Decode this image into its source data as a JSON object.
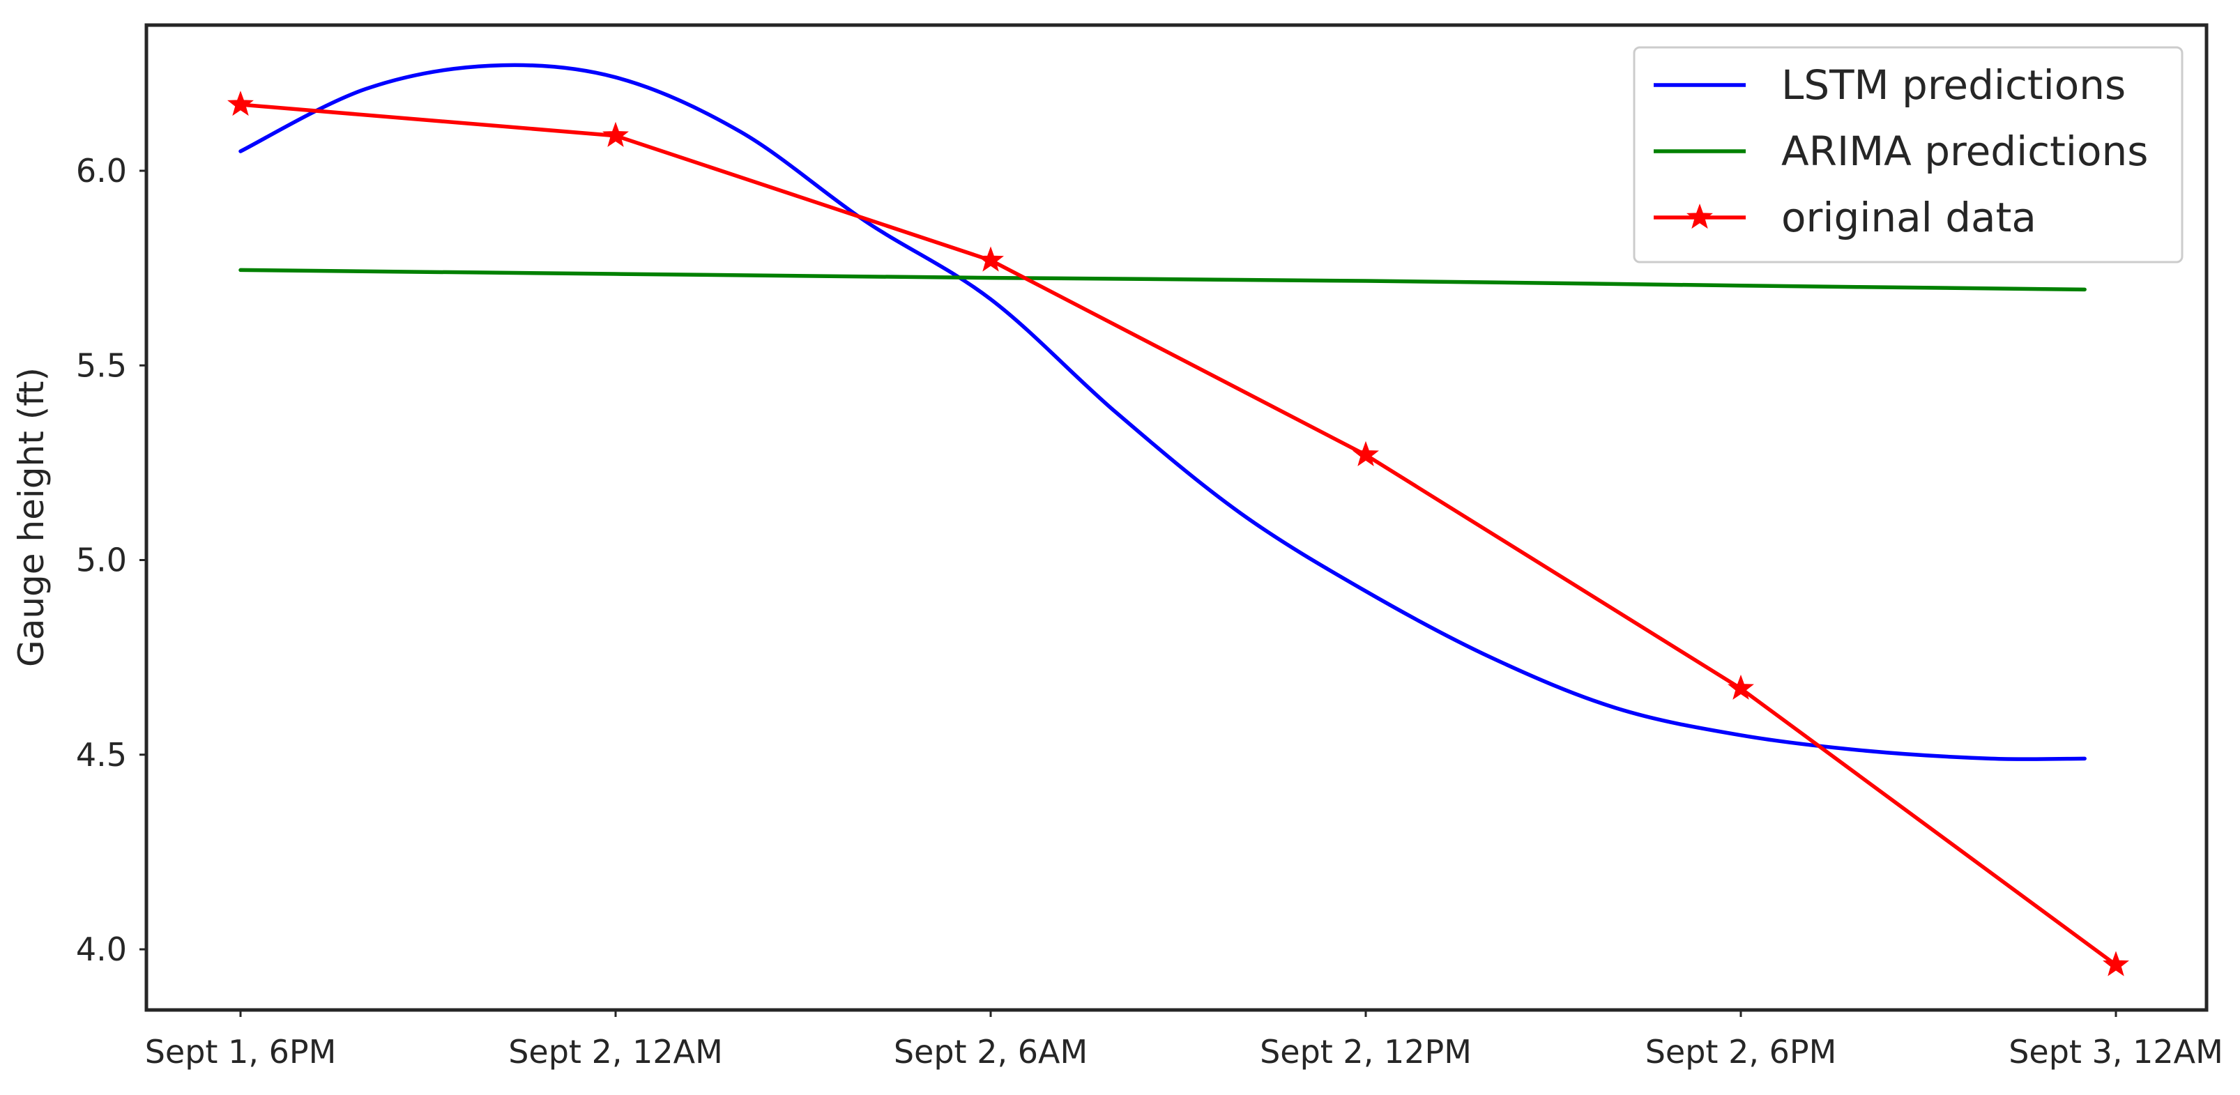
{
  "chart_data": {
    "type": "line",
    "title": "",
    "xlabel": "",
    "ylabel": "Gauge height (ft)",
    "grid": false,
    "legend_position": "top-right",
    "x_tick_labels": [
      "Sept 1, 6PM",
      "Sept 2, 12AM",
      "Sept 2, 6AM",
      "Sept 2, 12PM",
      "Sept 2, 6PM",
      "Sept 3, 12AM"
    ],
    "y_ticks": [
      4.0,
      4.5,
      5.0,
      5.5,
      6.0
    ],
    "y_tick_labels": [
      "4.0",
      "4.5",
      "5.0",
      "5.5",
      "6.0"
    ],
    "ylim": [
      3.85,
      6.37
    ],
    "series": [
      {
        "name": "LSTM predictions",
        "color": "#0000ff",
        "marker": "none",
        "x": [
          "Sept 1, 6PM",
          "Sept 1, 8PM",
          "Sept 1, 10PM",
          "Sept 2, 12AM",
          "Sept 2, 2AM",
          "Sept 2, 4AM",
          "Sept 2, 6AM",
          "Sept 2, 8AM",
          "Sept 2, 10AM",
          "Sept 2, 12PM",
          "Sept 2, 2PM",
          "Sept 2, 4PM",
          "Sept 2, 6PM",
          "Sept 2, 8PM",
          "Sept 2, 10PM",
          "Sept 2, 11:30PM"
        ],
        "y": [
          6.05,
          6.21,
          6.27,
          6.24,
          6.1,
          5.87,
          5.67,
          5.38,
          5.12,
          4.92,
          4.75,
          4.62,
          4.55,
          4.51,
          4.49,
          4.49
        ]
      },
      {
        "name": "ARIMA predictions",
        "color": "#008000",
        "marker": "none",
        "x": [
          "Sept 1, 6PM",
          "Sept 2, 12AM",
          "Sept 2, 6AM",
          "Sept 2, 12PM",
          "Sept 2, 6PM",
          "Sept 2, 11:30PM"
        ],
        "y": [
          5.745,
          5.735,
          5.725,
          5.717,
          5.705,
          5.695
        ]
      },
      {
        "name": "original data",
        "color": "#ff0000",
        "marker": "star",
        "x": [
          "Sept 1, 6PM",
          "Sept 2, 12AM",
          "Sept 2, 6AM",
          "Sept 2, 12PM",
          "Sept 2, 6PM",
          "Sept 3, 12AM"
        ],
        "y": [
          6.17,
          6.09,
          5.77,
          5.27,
          4.67,
          3.96
        ]
      }
    ]
  }
}
